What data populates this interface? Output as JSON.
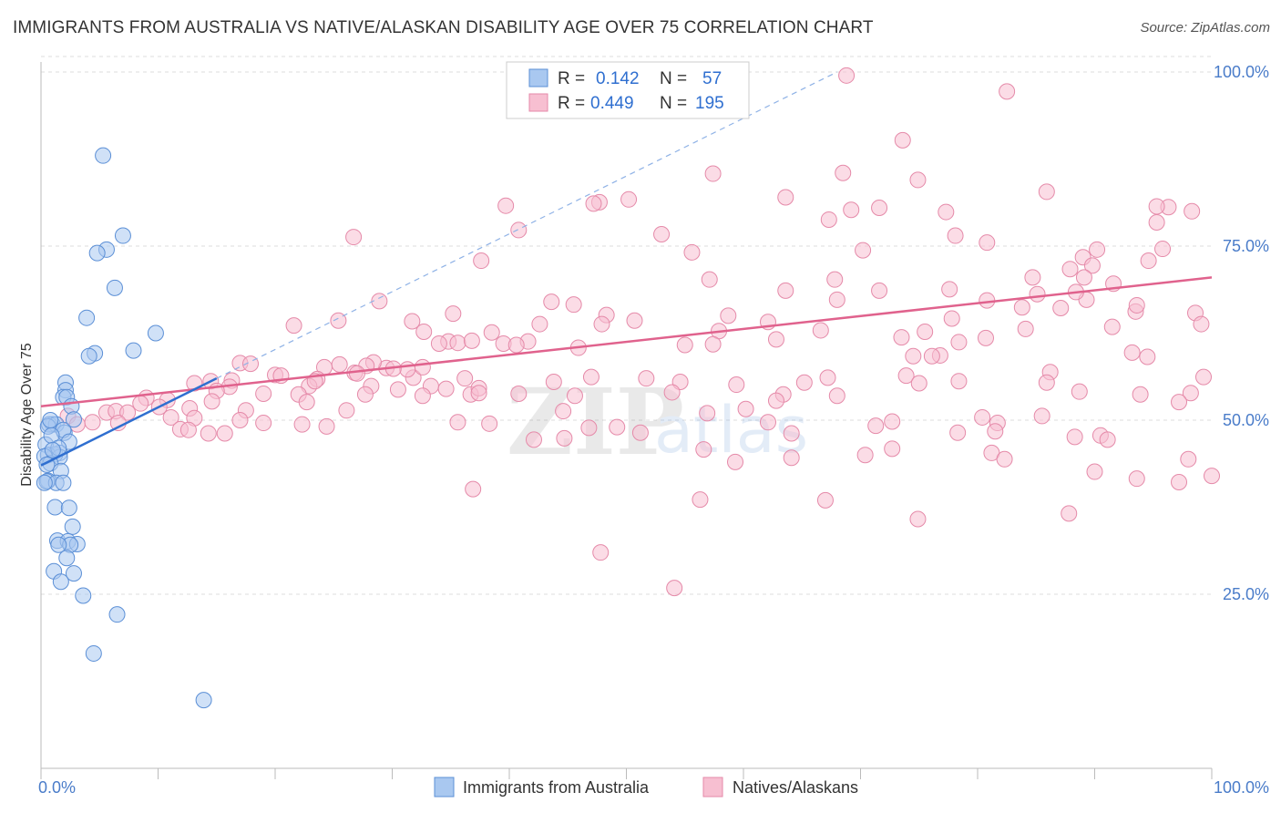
{
  "title": "IMMIGRANTS FROM AUSTRALIA VS NATIVE/ALASKAN DISABILITY AGE OVER 75 CORRELATION CHART",
  "source": "Source: ZipAtlas.com",
  "watermark": {
    "zip": "ZIP",
    "atlas": "atlas"
  },
  "colors": {
    "blue_fill": "#a9c8f0",
    "blue_stroke": "#5b8fd6",
    "blue_line": "#2f6fd0",
    "pink_fill": "#f7bfd1",
    "pink_stroke": "#e58aa9",
    "pink_line": "#e0628d",
    "grid": "#dddddd",
    "tick_label": "#4a7cc9"
  },
  "legend": {
    "rows": [
      {
        "r_label": "R =",
        "r_value": "0.142",
        "n_label": "N =",
        "n_value": "57"
      },
      {
        "r_label": "R =",
        "r_value": "0.449",
        "n_label": "N =",
        "n_value": "195"
      }
    ]
  },
  "bottom_legend": [
    "Immigrants from Australia",
    "Natives/Alaskans"
  ],
  "chart_data": {
    "type": "scatter",
    "title": "IMMIGRANTS FROM AUSTRALIA VS NATIVE/ALASKAN DISABILITY AGE OVER 75 CORRELATION CHART",
    "xlabel": "",
    "ylabel": "Disability Age Over 75",
    "xlim": [
      0,
      100
    ],
    "ylim": [
      0,
      100
    ],
    "x_tick_labels": [
      "0.0%",
      "100.0%"
    ],
    "y_ticks": [
      25,
      50,
      75,
      100
    ],
    "y_tick_labels": [
      "25.0%",
      "50.0%",
      "75.0%",
      "100.0%"
    ],
    "grid": true,
    "legend_position": "top-center",
    "series": [
      {
        "name": "Immigrants from Australia",
        "r": 0.142,
        "n": 57,
        "trend": {
          "x0": 0,
          "y0": 43.5,
          "x1": 15,
          "y1": 56.0
        },
        "trend_dashed": {
          "x0": 15,
          "y0": 56.0,
          "x1": 68,
          "y1": 100.0
        },
        "points": [
          [
            5.3,
            88
          ],
          [
            7.0,
            76.5
          ],
          [
            5.6,
            74.5
          ],
          [
            4.8,
            74
          ],
          [
            6.3,
            69
          ],
          [
            3.9,
            64.7
          ],
          [
            9.8,
            62.5
          ],
          [
            7.9,
            60
          ],
          [
            4.6,
            59.6
          ],
          [
            4.1,
            59.2
          ],
          [
            2.1,
            55.4
          ],
          [
            2.1,
            54.3
          ],
          [
            1.9,
            53.3
          ],
          [
            2.2,
            53.3
          ],
          [
            2.6,
            52
          ],
          [
            1.0,
            49.4
          ],
          [
            0.7,
            49.4
          ],
          [
            1.3,
            49.4
          ],
          [
            0.6,
            49.1
          ],
          [
            2.0,
            48.2
          ],
          [
            1.9,
            48.6
          ],
          [
            2.4,
            46.9
          ],
          [
            0.4,
            46.5
          ],
          [
            1.6,
            45.3
          ],
          [
            1.2,
            45.1
          ],
          [
            0.6,
            45.0
          ],
          [
            0.3,
            44.8
          ],
          [
            1.6,
            44.7
          ],
          [
            0.8,
            43.8
          ],
          [
            0.5,
            43.6
          ],
          [
            1.7,
            42.7
          ],
          [
            0.6,
            41.3
          ],
          [
            0.5,
            41.2
          ],
          [
            1.3,
            41.0
          ],
          [
            1.9,
            41.0
          ],
          [
            0.3,
            41.0
          ],
          [
            1.2,
            37.5
          ],
          [
            2.4,
            37.4
          ],
          [
            2.7,
            34.7
          ],
          [
            1.4,
            32.7
          ],
          [
            2.3,
            32.6
          ],
          [
            3.1,
            32.2
          ],
          [
            2.5,
            32.1
          ],
          [
            1.5,
            32.1
          ],
          [
            2.2,
            30.2
          ],
          [
            2.8,
            28.0
          ],
          [
            1.1,
            28.3
          ],
          [
            1.7,
            26.8
          ],
          [
            3.6,
            24.8
          ],
          [
            6.5,
            22.1
          ],
          [
            4.5,
            16.5
          ],
          [
            13.9,
            9.8
          ],
          [
            0.9,
            47.8
          ],
          [
            1.5,
            46.0
          ],
          [
            0.8,
            50.0
          ],
          [
            2.8,
            50.1
          ],
          [
            1.0,
            45.7
          ]
        ]
      },
      {
        "name": "Natives/Alaskans",
        "r": 0.449,
        "n": 195,
        "trend": {
          "x0": 0,
          "y0": 52.0,
          "x1": 100,
          "y1": 70.5
        },
        "points": [
          [
            68.8,
            99.5
          ],
          [
            82.5,
            97.2
          ],
          [
            73.6,
            90.2
          ],
          [
            68.5,
            85.5
          ],
          [
            57.4,
            85.4
          ],
          [
            74.9,
            84.5
          ],
          [
            85.9,
            82.8
          ],
          [
            63.6,
            82
          ],
          [
            50.2,
            81.7
          ],
          [
            47.7,
            81.3
          ],
          [
            47.2,
            81.1
          ],
          [
            71.6,
            80.5
          ],
          [
            69.2,
            80.2
          ],
          [
            39.7,
            80.8
          ],
          [
            96.3,
            80.6
          ],
          [
            98.3,
            80
          ],
          [
            95.3,
            80.7
          ],
          [
            77.3,
            79.9
          ],
          [
            67.3,
            78.8
          ],
          [
            95.3,
            78.4
          ],
          [
            40.8,
            77.3
          ],
          [
            53.0,
            76.7
          ],
          [
            26.7,
            76.3
          ],
          [
            80.8,
            75.5
          ],
          [
            78.1,
            76.5
          ],
          [
            90.2,
            74.5
          ],
          [
            55.6,
            74.1
          ],
          [
            70.2,
            74.4
          ],
          [
            95.8,
            74.6
          ],
          [
            94.6,
            72.9
          ],
          [
            89.0,
            73.4
          ],
          [
            37.6,
            72.9
          ],
          [
            67.8,
            70.2
          ],
          [
            87.9,
            71.7
          ],
          [
            57.1,
            70.2
          ],
          [
            84.7,
            70.5
          ],
          [
            89.8,
            72.2
          ],
          [
            89.1,
            70.5
          ],
          [
            77.6,
            68.8
          ],
          [
            63.6,
            68.6
          ],
          [
            71.6,
            68.6
          ],
          [
            91.6,
            69.6
          ],
          [
            85.1,
            68.1
          ],
          [
            89.3,
            67.3
          ],
          [
            68.0,
            67.3
          ],
          [
            80.8,
            67.2
          ],
          [
            88.4,
            68.4
          ],
          [
            87.1,
            66.1
          ],
          [
            43.6,
            67.0
          ],
          [
            45.5,
            66.6
          ],
          [
            28.9,
            67.1
          ],
          [
            35.2,
            65.3
          ],
          [
            48.3,
            65.1
          ],
          [
            47.9,
            63.8
          ],
          [
            42.6,
            63.8
          ],
          [
            50.7,
            64.3
          ],
          [
            62.1,
            64.1
          ],
          [
            58.7,
            65.0
          ],
          [
            83.8,
            66.2
          ],
          [
            93.5,
            65.6
          ],
          [
            93.6,
            66.5
          ],
          [
            98.6,
            65.4
          ],
          [
            99.1,
            63.8
          ],
          [
            21.6,
            63.6
          ],
          [
            25.4,
            64.3
          ],
          [
            31.7,
            64.2
          ],
          [
            77.8,
            64.6
          ],
          [
            91.5,
            63.4
          ],
          [
            34.8,
            61.3
          ],
          [
            41.6,
            61.3
          ],
          [
            45.9,
            60.4
          ],
          [
            57.9,
            62.8
          ],
          [
            66.6,
            62.9
          ],
          [
            75.5,
            62.7
          ],
          [
            84.1,
            63.1
          ],
          [
            80.7,
            61.8
          ],
          [
            73.5,
            61.9
          ],
          [
            78.4,
            61.2
          ],
          [
            32.7,
            62.7
          ],
          [
            35.6,
            61.1
          ],
          [
            38.5,
            62.6
          ],
          [
            39.5,
            61.0
          ],
          [
            36.8,
            61.4
          ],
          [
            40.6,
            60.8
          ],
          [
            34.0,
            61.0
          ],
          [
            57.4,
            60.9
          ],
          [
            55.0,
            60.8
          ],
          [
            62.8,
            61.6
          ],
          [
            76.8,
            59.3
          ],
          [
            74.5,
            59.2
          ],
          [
            76.1,
            59.2
          ],
          [
            94.5,
            59.1
          ],
          [
            93.2,
            59.7
          ],
          [
            99.3,
            56.2
          ],
          [
            86.2,
            56.9
          ],
          [
            31.8,
            56.1
          ],
          [
            25.5,
            58.0
          ],
          [
            24.2,
            57.6
          ],
          [
            29.5,
            57.5
          ],
          [
            28.4,
            58.3
          ],
          [
            31.3,
            57.3
          ],
          [
            30.1,
            57.4
          ],
          [
            27.8,
            57.8
          ],
          [
            32.6,
            57.6
          ],
          [
            26.8,
            56.8
          ],
          [
            27.0,
            56.7
          ],
          [
            36.2,
            56.0
          ],
          [
            17.0,
            58.2
          ],
          [
            17.9,
            58.1
          ],
          [
            23.6,
            55.9
          ],
          [
            20.0,
            56.5
          ],
          [
            22.9,
            54.9
          ],
          [
            23.4,
            55.6
          ],
          [
            20.5,
            56.4
          ],
          [
            28.2,
            54.9
          ],
          [
            30.5,
            54.4
          ],
          [
            33.3,
            54.9
          ],
          [
            34.6,
            54.5
          ],
          [
            36.7,
            53.7
          ],
          [
            37.4,
            54.6
          ],
          [
            43.8,
            55.5
          ],
          [
            47.0,
            56.2
          ],
          [
            51.7,
            56.0
          ],
          [
            54.6,
            55.5
          ],
          [
            59.4,
            55.1
          ],
          [
            65.2,
            55.4
          ],
          [
            67.2,
            56.1
          ],
          [
            73.9,
            56.4
          ],
          [
            75.0,
            55.3
          ],
          [
            78.4,
            55.6
          ],
          [
            16.3,
            55.7
          ],
          [
            14.5,
            55.6
          ],
          [
            16.1,
            54.8
          ],
          [
            13.1,
            55.3
          ],
          [
            15.0,
            54.2
          ],
          [
            19.0,
            53.8
          ],
          [
            22.0,
            53.7
          ],
          [
            27.7,
            53.7
          ],
          [
            32.6,
            53.5
          ],
          [
            37.4,
            53.9
          ],
          [
            40.8,
            53.8
          ],
          [
            45.6,
            53.5
          ],
          [
            53.9,
            54.0
          ],
          [
            63.4,
            53.7
          ],
          [
            68.0,
            53.5
          ],
          [
            85.9,
            55.4
          ],
          [
            88.7,
            54.1
          ],
          [
            93.9,
            53.7
          ],
          [
            98.2,
            53.9
          ],
          [
            9.0,
            53.2
          ],
          [
            10.8,
            52.9
          ],
          [
            14.6,
            52.7
          ],
          [
            12.7,
            51.7
          ],
          [
            8.5,
            52.4
          ],
          [
            5.6,
            51.1
          ],
          [
            6.4,
            51.3
          ],
          [
            7.4,
            51.1
          ],
          [
            10.1,
            51.9
          ],
          [
            17.5,
            51.4
          ],
          [
            22.7,
            52.6
          ],
          [
            26.1,
            51.4
          ],
          [
            44.6,
            51.3
          ],
          [
            56.9,
            51.0
          ],
          [
            60.2,
            51.6
          ],
          [
            62.1,
            49.7
          ],
          [
            64.1,
            48.1
          ],
          [
            51.2,
            48.2
          ],
          [
            46.8,
            48.9
          ],
          [
            71.3,
            49.2
          ],
          [
            72.7,
            49.8
          ],
          [
            78.3,
            48.2
          ],
          [
            80.4,
            50.4
          ],
          [
            81.7,
            49.6
          ],
          [
            85.5,
            50.6
          ],
          [
            97.2,
            52.6
          ],
          [
            2.3,
            50.6
          ],
          [
            3.1,
            49.4
          ],
          [
            4.4,
            49.7
          ],
          [
            6.6,
            49.6
          ],
          [
            11.1,
            50.4
          ],
          [
            13.1,
            50.3
          ],
          [
            17.0,
            50.0
          ],
          [
            19.0,
            49.6
          ],
          [
            22.3,
            49.4
          ],
          [
            24.4,
            49.1
          ],
          [
            35.6,
            49.7
          ],
          [
            38.3,
            49.5
          ],
          [
            11.9,
            48.7
          ],
          [
            12.6,
            48.6
          ],
          [
            14.3,
            48.1
          ],
          [
            15.7,
            48.1
          ],
          [
            42.1,
            47.2
          ],
          [
            44.7,
            47.4
          ],
          [
            49.2,
            49.0
          ],
          [
            90.5,
            47.8
          ],
          [
            91.1,
            47.2
          ],
          [
            81.5,
            48.4
          ],
          [
            88.3,
            47.6
          ],
          [
            62.8,
            52.8
          ],
          [
            56.6,
            45.8
          ],
          [
            59.3,
            44.0
          ],
          [
            64.1,
            44.6
          ],
          [
            70.4,
            45.0
          ],
          [
            72.7,
            45.9
          ],
          [
            81.2,
            45.3
          ],
          [
            82.3,
            44.4
          ],
          [
            90.0,
            42.6
          ],
          [
            93.6,
            41.6
          ],
          [
            97.2,
            41.1
          ],
          [
            36.9,
            40.1
          ],
          [
            56.3,
            38.6
          ],
          [
            67.0,
            38.5
          ],
          [
            74.9,
            35.8
          ],
          [
            87.8,
            36.6
          ],
          [
            98.0,
            44.4
          ],
          [
            100,
            42
          ],
          [
            47.8,
            31
          ],
          [
            54.1,
            25.9
          ]
        ]
      }
    ]
  }
}
